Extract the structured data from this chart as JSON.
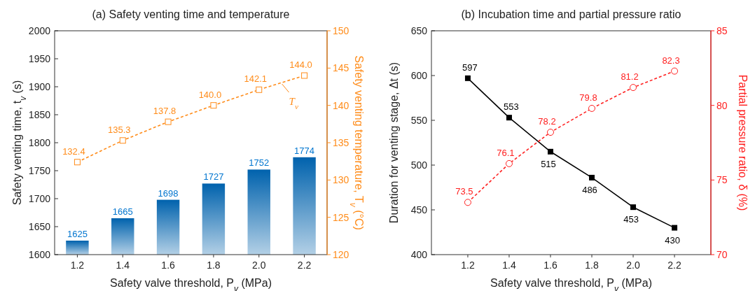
{
  "chart_data": [
    {
      "type": "bar",
      "title": "(a) Safety venting time and temperature",
      "xlabel": "Safety valve threshold, P$_{v}$ (MPa)",
      "ylabel": "Safety venting time, t$_{v}$ (s)",
      "y2label": "Safety venting temperature, T$_{v}$ (°C)",
      "categories": [
        "1.2",
        "1.4",
        "1.6",
        "1.8",
        "2.0",
        "2.2"
      ],
      "series": [
        {
          "color": "#0062ad",
          "values": [
            1625,
            1665,
            1698,
            1727,
            1752,
            1774
          ]
        },
        {
          "type": "line",
          "name": "T$_{v}$",
          "axis": "y2",
          "color": "#ff8c1a",
          "marker": "square",
          "line_style": "dashed",
          "values": [
            132.4,
            135.3,
            137.8,
            140.0,
            142.1,
            144.0
          ],
          "value_labels": [
            "132.4",
            "135.3",
            "137.8",
            "140.0",
            "142.1",
            "144.0"
          ]
        }
      ],
      "ylim": [
        1600,
        2000
      ],
      "yticks": [
        1600,
        1650,
        1700,
        1750,
        1800,
        1850,
        1900,
        1950,
        2000
      ],
      "y2lim": [
        120,
        150
      ],
      "y2ticks": [
        120,
        125,
        130,
        135,
        140,
        145,
        150
      ],
      "data_labels": true,
      "grid": false,
      "legend": "top right"
    },
    {
      "type": "line",
      "title": "(b) Incubation time and partial pressure ratio",
      "xlabel": "Safety valve threshold, P$_{v}$ (MPa)",
      "ylabel": "Duration for venting stage, Δt (s)",
      "y2label": "Partial pressure ratio, δ (%)",
      "categories": [
        "1.2",
        "1.4",
        "1.6",
        "1.8",
        "2.0",
        "2.2"
      ],
      "series": [
        {
          "color": "#000000",
          "marker": "square",
          "line_style": "solid",
          "values": [
            597,
            553,
            515,
            486,
            453,
            430
          ]
        },
        {
          "axis": "y2",
          "color": "#ff2020",
          "marker": "circle",
          "line_style": "dashed",
          "values": [
            73.5,
            76.1,
            78.2,
            79.8,
            81.2,
            82.3
          ]
        }
      ],
      "ylim": [
        400,
        650
      ],
      "yticks": [
        400,
        450,
        500,
        550,
        600,
        650
      ],
      "y2lim": [
        70,
        85
      ],
      "y2ticks": [
        70,
        75,
        80,
        85
      ],
      "data_labels": true,
      "grid": false
    }
  ]
}
